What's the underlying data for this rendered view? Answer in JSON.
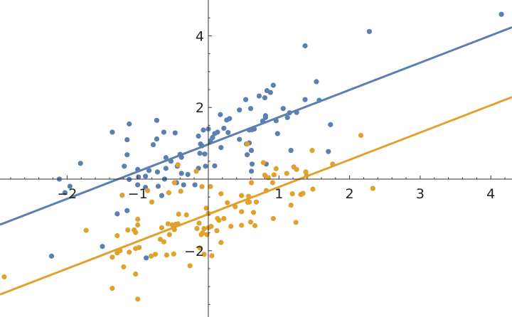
{
  "chart_data": {
    "type": "scatter",
    "xlim": [
      -2.95,
      4.3
    ],
    "ylim": [
      -3.85,
      5.0
    ],
    "x_ticks": [
      -2,
      -1,
      1,
      2,
      3,
      4
    ],
    "x_tick_labels": [
      "−2",
      "−1",
      "1",
      "2",
      "3",
      "4"
    ],
    "x_minor_ticks": [
      -2.8,
      -2.6,
      -2.4,
      -2.2,
      -1.8,
      -1.6,
      -1.4,
      -1.2,
      -0.8,
      -0.6,
      -0.4,
      -0.2,
      0.2,
      0.4,
      0.6,
      0.8,
      1.2,
      1.4,
      1.6,
      1.8,
      2.2,
      2.4,
      2.6,
      2.8,
      3.2,
      3.4,
      3.6,
      3.8,
      4.2
    ],
    "y_ticks": [
      -2,
      2,
      4
    ],
    "y_tick_labels": [
      "−2",
      "2",
      "4"
    ],
    "y_minor_ticks": [
      -3.5,
      -3,
      -2.5,
      -1.5,
      -1,
      -0.5,
      0.5,
      1,
      1.5,
      2.5,
      3,
      3.5,
      4.5
    ],
    "grid": false,
    "legend": "none",
    "series": [
      {
        "color": "#5b7fb0",
        "fit_line": {
          "slope": 0.76,
          "intercept": 0.97
        },
        "points": [
          [
            4.15,
            4.6
          ],
          [
            2.28,
            4.12
          ],
          [
            1.37,
            3.72
          ],
          [
            1.53,
            2.72
          ],
          [
            0.92,
            2.62
          ],
          [
            0.83,
            2.47
          ],
          [
            0.88,
            2.42
          ],
          [
            0.72,
            2.32
          ],
          [
            0.8,
            2.27
          ],
          [
            0.53,
            2.22
          ],
          [
            1.37,
            2.22
          ],
          [
            1.57,
            2.2
          ],
          [
            0.6,
            1.97
          ],
          [
            0.44,
            1.93
          ],
          [
            1.06,
            1.97
          ],
          [
            1.15,
            1.85
          ],
          [
            1.25,
            1.86
          ],
          [
            0.17,
            1.8
          ],
          [
            0.81,
            1.77
          ],
          [
            0.81,
            1.72
          ],
          [
            1.12,
            1.72
          ],
          [
            0.96,
            1.63
          ],
          [
            0.3,
            1.69
          ],
          [
            0.26,
            1.65
          ],
          [
            0.77,
            1.62
          ],
          [
            -0.73,
            1.64
          ],
          [
            -1.12,
            1.54
          ],
          [
            1.73,
            1.52
          ],
          [
            0.65,
            1.4
          ],
          [
            0.22,
            1.42
          ],
          [
            0.62,
            1.38
          ],
          [
            0.58,
            1.37
          ],
          [
            0.0,
            1.4
          ],
          [
            -0.07,
            1.37
          ],
          [
            -1.36,
            1.31
          ],
          [
            -0.47,
            1.29
          ],
          [
            0.28,
            1.3
          ],
          [
            0.13,
            1.31
          ],
          [
            0.09,
            1.27
          ],
          [
            0.98,
            1.27
          ],
          [
            -0.63,
            1.31
          ],
          [
            -0.14,
            1.2
          ],
          [
            0.06,
            1.16
          ],
          [
            -0.73,
            1.12
          ],
          [
            -1.15,
            1.1
          ],
          [
            0.44,
            1.11
          ],
          [
            0.54,
            0.98
          ],
          [
            0.58,
            1.01
          ],
          [
            0.03,
            1.07
          ],
          [
            -0.11,
            0.98
          ],
          [
            -0.09,
            0.93
          ],
          [
            -0.78,
            0.96
          ],
          [
            0.18,
            0.88
          ],
          [
            1.17,
            0.8
          ],
          [
            0.61,
            0.8
          ],
          [
            1.7,
            0.77
          ],
          [
            -0.12,
            0.72
          ],
          [
            -0.05,
            0.7
          ],
          [
            -0.4,
            0.69
          ],
          [
            0.55,
            0.68
          ],
          [
            -1.15,
            0.68
          ],
          [
            -0.6,
            0.6
          ],
          [
            -0.38,
            0.61
          ],
          [
            -0.53,
            0.5
          ],
          [
            0.62,
            0.42
          ],
          [
            0.82,
            0.42
          ],
          [
            -1.81,
            0.44
          ],
          [
            0.09,
            0.37
          ],
          [
            -0.44,
            0.36
          ],
          [
            -1.19,
            0.36
          ],
          [
            -0.04,
            0.36
          ],
          [
            -0.6,
            0.3
          ],
          [
            -0.14,
            0.3
          ],
          [
            -1.0,
            0.27
          ],
          [
            -0.84,
            0.24
          ],
          [
            0.61,
            0.22
          ],
          [
            -0.72,
            0.2
          ],
          [
            -0.38,
            0.16
          ],
          [
            -0.29,
            0.13
          ],
          [
            -0.99,
            0.06
          ],
          [
            -0.89,
            0.08
          ],
          [
            -2.11,
            0.0
          ],
          [
            -1.12,
            -0.01
          ],
          [
            -0.62,
            0.0
          ],
          [
            -0.45,
            -0.1
          ],
          [
            -0.19,
            -0.16
          ],
          [
            -0.35,
            -0.16
          ],
          [
            -1.0,
            -0.16
          ],
          [
            -1.96,
            -0.2
          ],
          [
            -0.71,
            -0.2
          ],
          [
            -0.89,
            -0.23
          ],
          [
            -2.03,
            -0.38
          ],
          [
            -0.66,
            -0.46
          ],
          [
            -1.15,
            -0.88
          ],
          [
            -1.29,
            -0.97
          ],
          [
            -1.5,
            -1.88
          ],
          [
            -2.22,
            -2.15
          ],
          [
            -0.88,
            -2.2
          ]
        ]
      },
      {
        "color": "#e0a12f",
        "fit_line": {
          "slope": 0.76,
          "intercept": -0.98
        },
        "points": [
          [
            2.16,
            1.22
          ],
          [
            1.47,
            0.8
          ],
          [
            0.55,
            0.98
          ],
          [
            1.76,
            0.42
          ],
          [
            0.78,
            0.46
          ],
          [
            0.96,
            0.29
          ],
          [
            1.25,
            0.27
          ],
          [
            1.38,
            0.2
          ],
          [
            -0.43,
            0.4
          ],
          [
            -0.17,
            0.22
          ],
          [
            1.21,
            0.34
          ],
          [
            1.11,
            0.16
          ],
          [
            0.93,
            0.12
          ],
          [
            0.8,
            0.11
          ],
          [
            1.39,
            0.1
          ],
          [
            0.91,
            -0.1
          ],
          [
            0.85,
            0.04
          ],
          [
            0.61,
            -0.1
          ],
          [
            -0.48,
            -0.1
          ],
          [
            0.03,
            -0.21
          ],
          [
            -0.09,
            -0.21
          ],
          [
            2.33,
            -0.26
          ],
          [
            1.48,
            -0.28
          ],
          [
            0.82,
            -0.32
          ],
          [
            -0.86,
            -0.32
          ],
          [
            -0.39,
            -0.34
          ],
          [
            -0.56,
            -0.38
          ],
          [
            1.34,
            -0.4
          ],
          [
            1.19,
            -0.41
          ],
          [
            0.18,
            -0.41
          ],
          [
            1.31,
            -0.43
          ],
          [
            -1.22,
            -0.45
          ],
          [
            0.47,
            -0.46
          ],
          [
            0.57,
            -0.48
          ],
          [
            0.68,
            -0.64
          ],
          [
            0.27,
            -0.66
          ],
          [
            0.58,
            -0.64
          ],
          [
            -0.8,
            -0.64
          ],
          [
            0.56,
            -0.65
          ],
          [
            1.17,
            -0.73
          ],
          [
            0.38,
            -0.77
          ],
          [
            -0.03,
            -0.81
          ],
          [
            0.47,
            -0.91
          ],
          [
            0.64,
            -0.93
          ],
          [
            -0.42,
            -0.98
          ],
          [
            -0.31,
            -1.0
          ],
          [
            0.0,
            -0.96
          ],
          [
            0.92,
            -1.1
          ],
          [
            0.22,
            -1.1
          ],
          [
            -1.0,
            -1.12
          ],
          [
            0.13,
            -1.1
          ],
          [
            0.15,
            -1.15
          ],
          [
            0.6,
            -1.2
          ],
          [
            1.24,
            -1.21
          ],
          [
            -0.57,
            -1.25
          ],
          [
            -0.43,
            -1.25
          ],
          [
            -0.13,
            -1.23
          ],
          [
            -0.46,
            -1.26
          ],
          [
            -1.0,
            -1.28
          ],
          [
            -0.51,
            -1.28
          ],
          [
            0.47,
            -1.29
          ],
          [
            0.32,
            -1.32
          ],
          [
            0.04,
            -1.32
          ],
          [
            0.66,
            -1.3
          ],
          [
            0.0,
            -1.36
          ],
          [
            -0.66,
            -1.36
          ],
          [
            -0.16,
            -1.38
          ],
          [
            -1.14,
            -1.42
          ],
          [
            -1.05,
            -1.42
          ],
          [
            -0.06,
            -1.38
          ],
          [
            -0.48,
            -1.41
          ],
          [
            -1.73,
            -1.43
          ],
          [
            0.12,
            -1.44
          ],
          [
            -0.08,
            -1.5
          ],
          [
            -0.1,
            -1.55
          ],
          [
            -0.55,
            -1.55
          ],
          [
            -1.03,
            -1.49
          ],
          [
            -1.29,
            -1.58
          ],
          [
            -0.02,
            -1.55
          ],
          [
            -0.68,
            -1.68
          ],
          [
            -0.63,
            -1.75
          ],
          [
            0.18,
            -1.77
          ],
          [
            -0.98,
            -1.91
          ],
          [
            -0.12,
            -1.92
          ],
          [
            -1.03,
            -1.94
          ],
          [
            -1.25,
            -2.0
          ],
          [
            -1.12,
            -2.04
          ],
          [
            -1.29,
            -2.06
          ],
          [
            -0.49,
            -2.09
          ],
          [
            -0.06,
            -2.1
          ],
          [
            -0.59,
            -2.12
          ],
          [
            -0.75,
            -2.1
          ],
          [
            0.05,
            -2.14
          ],
          [
            -0.81,
            -2.15
          ],
          [
            -1.36,
            -2.18
          ],
          [
            -1.2,
            -2.45
          ],
          [
            -0.26,
            -2.42
          ],
          [
            -2.89,
            -2.73
          ],
          [
            -1.03,
            -2.65
          ],
          [
            -1.36,
            -3.05
          ],
          [
            -1.0,
            -3.35
          ]
        ]
      }
    ]
  }
}
